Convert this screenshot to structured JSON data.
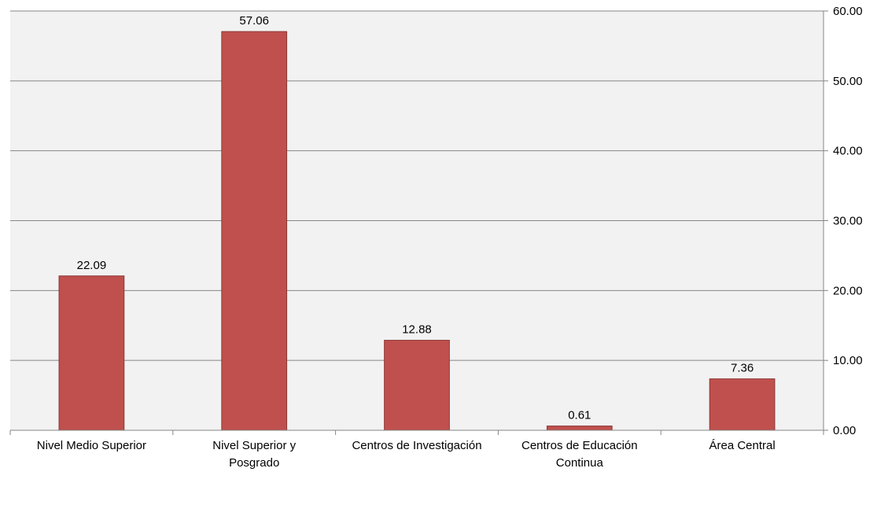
{
  "chart_data": {
    "type": "bar",
    "title": "",
    "xlabel": "",
    "ylabel": "",
    "categories": [
      "Nivel Medio Superior",
      "Nivel Superior y Posgrado",
      "Centros de Investigación",
      "Centros de Educación Continua",
      "Área Central"
    ],
    "category_label_lines": [
      [
        "Nivel Medio Superior"
      ],
      [
        "Nivel Superior y",
        "Posgrado"
      ],
      [
        "Centros de Investigación"
      ],
      [
        "Centros de Educación",
        "Continua"
      ],
      [
        "Área Central"
      ]
    ],
    "series": [
      {
        "values": [
          22.09,
          57.06,
          12.88,
          0.61,
          7.36
        ]
      }
    ],
    "data_labels": [
      "22.09",
      "57.06",
      "12.88",
      "0.61",
      "7.36"
    ],
    "y_ticks": [
      "0.00",
      "10.00",
      "20.00",
      "30.00",
      "40.00",
      "50.00",
      "60.00"
    ],
    "ylim": [
      0,
      60
    ],
    "y_axis_side": "right",
    "grid": true,
    "legend": "none",
    "colors": {
      "bar": "#C0504D",
      "bar_border": "#8C3836",
      "plot_background": "#F2F2F2",
      "grid": "#868686",
      "axis": "#868686"
    }
  }
}
